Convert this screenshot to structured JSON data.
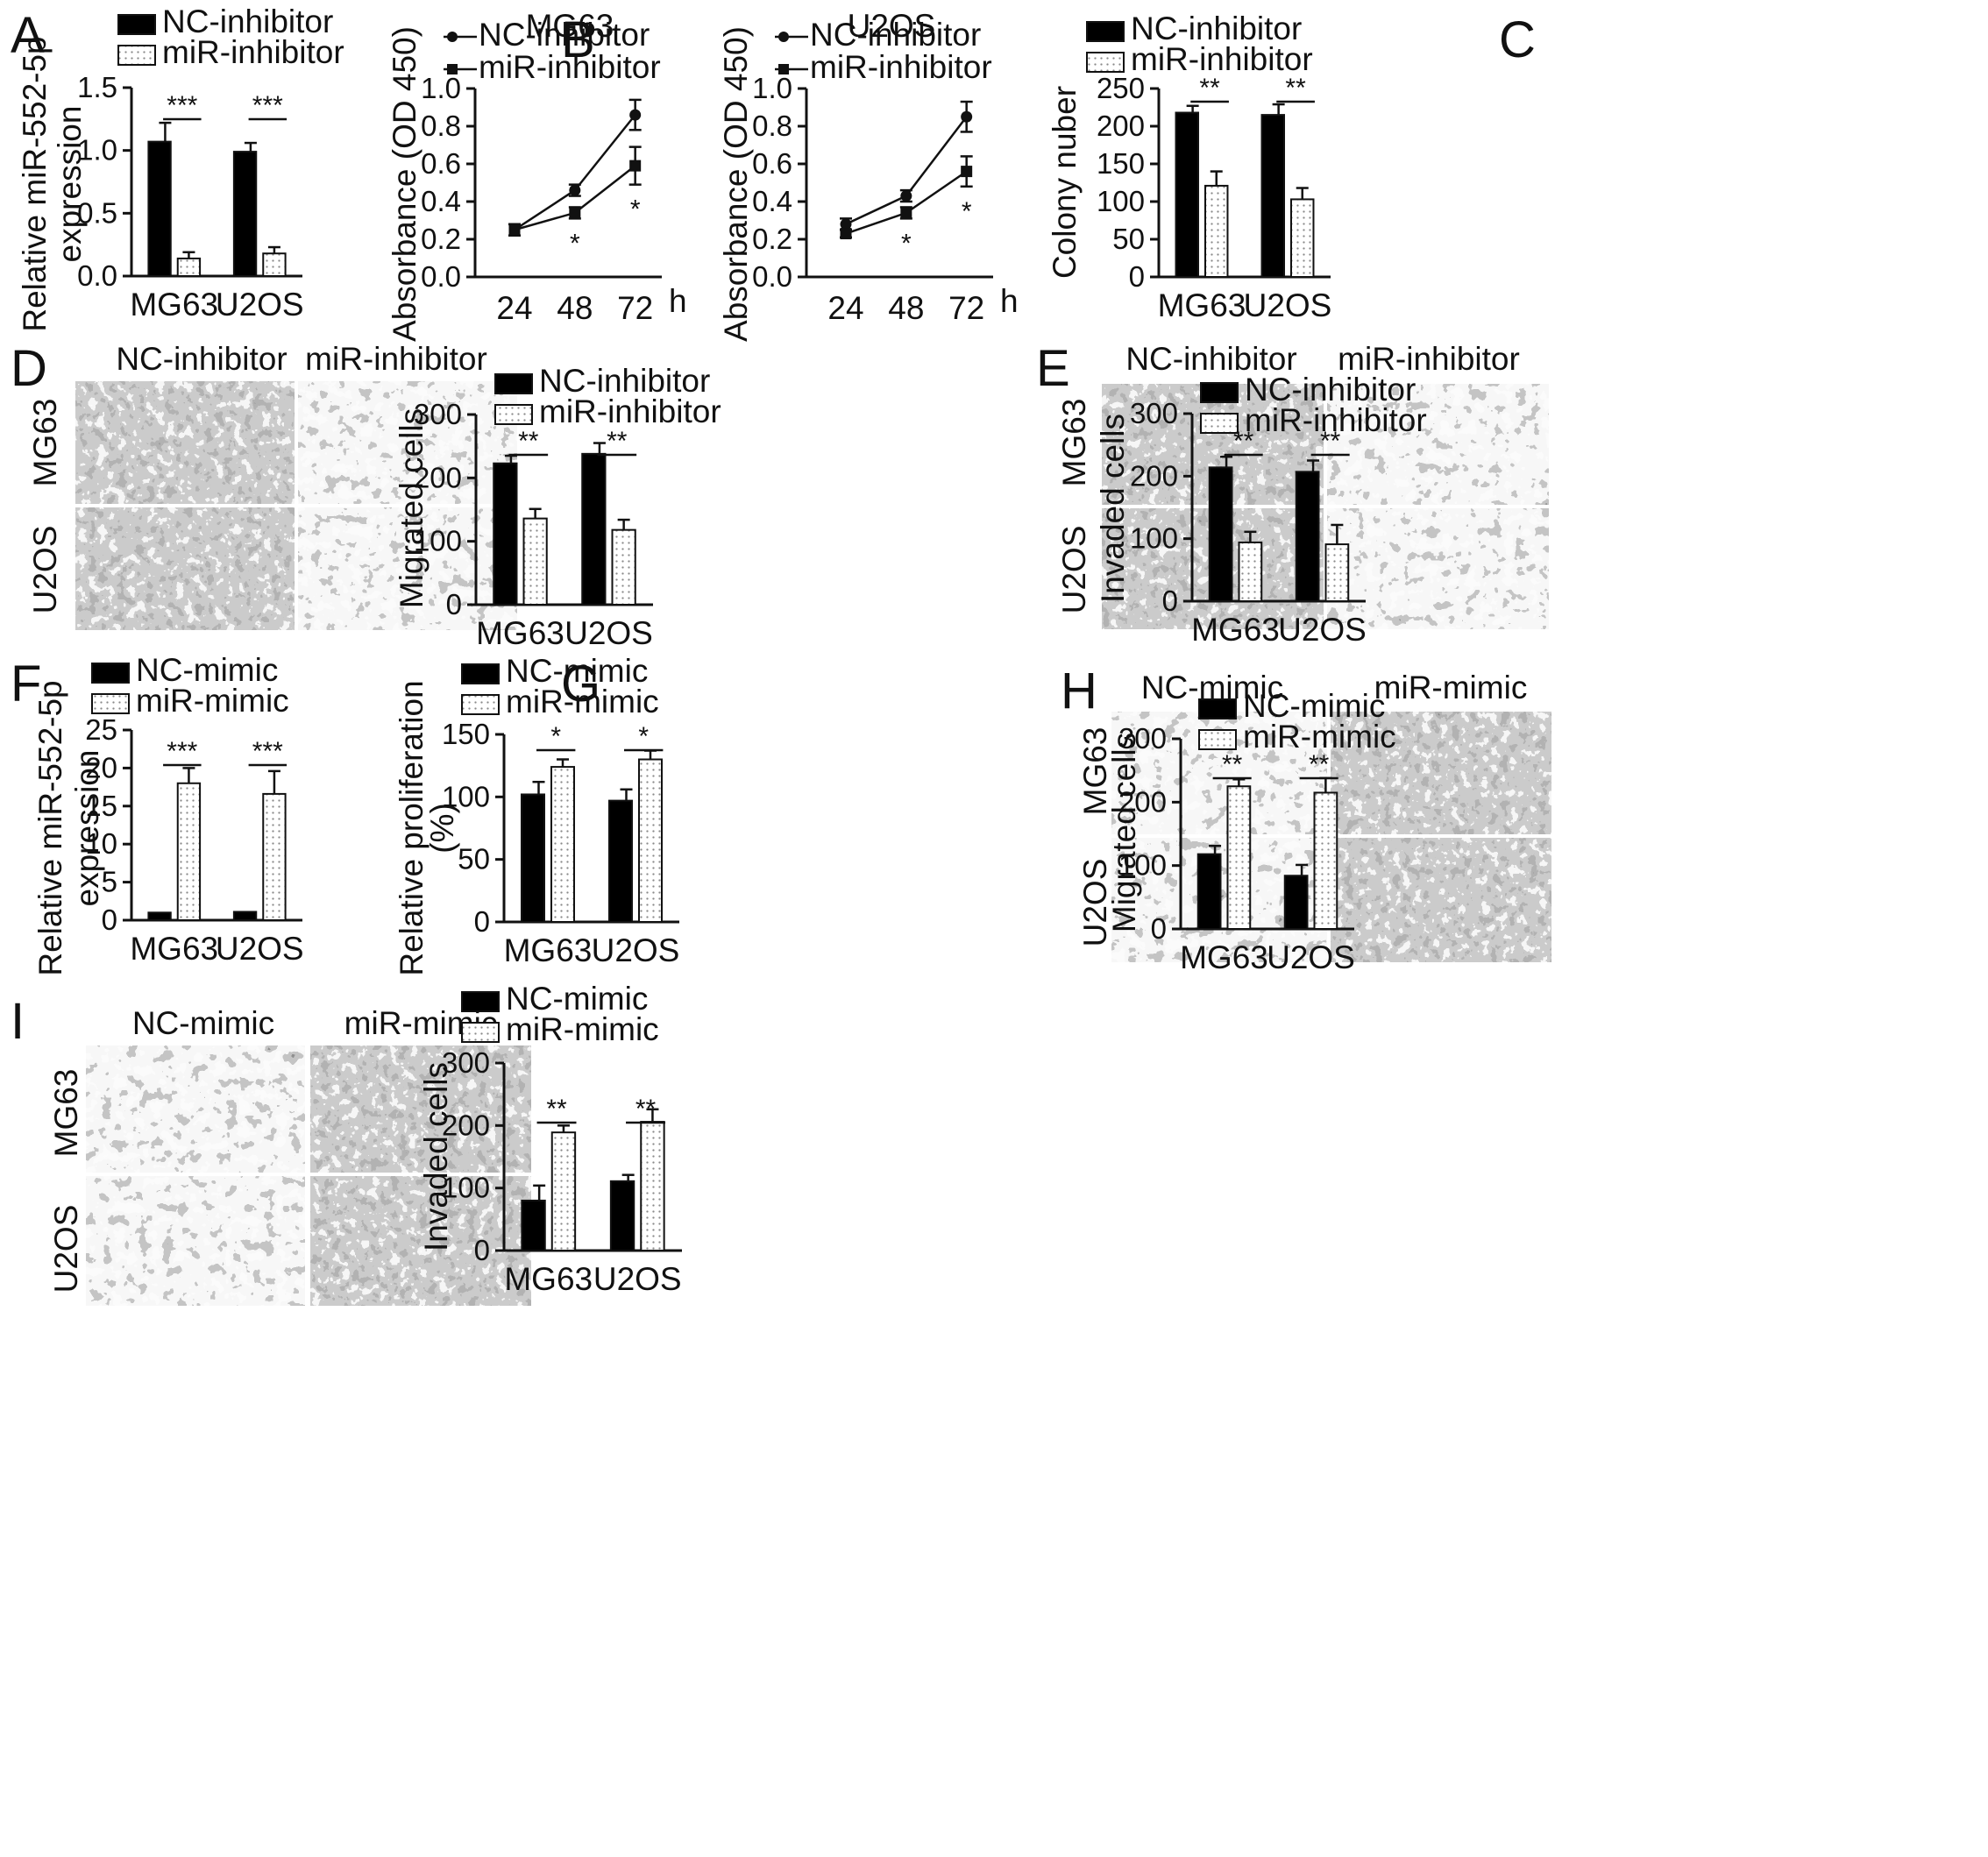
{
  "colors": {
    "nc": "#000000",
    "mir_fill": "#ffffff",
    "mir_dots": "#8a8a8a",
    "ink": "#111111"
  },
  "panels": {
    "A": "A",
    "B": "B",
    "C": "C",
    "D": "D",
    "E": "E",
    "F": "F",
    "G": "G",
    "H": "H",
    "I": "I"
  },
  "micro": {
    "D": {
      "col1": "NC-inhibitor",
      "col2": "miR-inhibitor",
      "row1": "MG63",
      "row2": "U2OS"
    },
    "E": {
      "col1": "NC-inhibitor",
      "col2": "miR-inhibitor",
      "row1": "MG63",
      "row2": "U2OS"
    },
    "H": {
      "col1": "NC-mimic",
      "col2": "miR-mimic",
      "row1": "MG63",
      "row2": "U2OS"
    },
    "I": {
      "col1": "NC-mimic",
      "col2": "miR-mimic",
      "row1": "MG63",
      "row2": "U2OS"
    }
  },
  "chart_data": [
    {
      "id": "A",
      "type": "bar",
      "categories": [
        "MG63",
        "U2OS"
      ],
      "series": [
        {
          "name": "NC-inhibitor",
          "values": [
            1.07,
            0.99
          ],
          "errors": [
            0.15,
            0.07
          ]
        },
        {
          "name": "miR-inhibitor",
          "values": [
            0.14,
            0.18
          ],
          "errors": [
            0.05,
            0.05
          ]
        }
      ],
      "ylabel": "Relative miR-552-5p expression",
      "ylim": [
        0,
        1.5
      ],
      "yticks": [
        "0.0",
        "0.5",
        "1.0",
        "1.5"
      ],
      "significance": [
        "***",
        "***"
      ]
    },
    {
      "id": "B1",
      "type": "line",
      "title": "MG63",
      "x": [
        "24",
        "48",
        "72"
      ],
      "xunit": "h",
      "series": [
        {
          "name": "NC-inhibitor",
          "values": [
            0.25,
            0.46,
            0.86
          ],
          "errors": [
            0.03,
            0.03,
            0.08
          ]
        },
        {
          "name": "miR-inhibitor",
          "values": [
            0.25,
            0.34,
            0.59
          ],
          "errors": [
            0.03,
            0.03,
            0.1
          ]
        }
      ],
      "ylabel": "Absorbance (OD 450)",
      "ylim": [
        0,
        1.0
      ],
      "yticks": [
        "0.0",
        "0.2",
        "0.4",
        "0.6",
        "0.8",
        "1.0"
      ],
      "significance": [
        "",
        "*",
        "*"
      ]
    },
    {
      "id": "B2",
      "type": "line",
      "title": "U2OS",
      "x": [
        "24",
        "48",
        "72"
      ],
      "xunit": "h",
      "series": [
        {
          "name": "NC-inhibitor",
          "values": [
            0.28,
            0.43,
            0.85
          ],
          "errors": [
            0.03,
            0.03,
            0.08
          ]
        },
        {
          "name": "miR-inhibitor",
          "values": [
            0.23,
            0.34,
            0.56
          ],
          "errors": [
            0.02,
            0.03,
            0.08
          ]
        }
      ],
      "ylabel": "Absorbance (OD 450)",
      "ylim": [
        0,
        1.0
      ],
      "yticks": [
        "0.0",
        "0.2",
        "0.4",
        "0.6",
        "0.8",
        "1.0"
      ],
      "significance": [
        "",
        "*",
        "*"
      ]
    },
    {
      "id": "C",
      "type": "bar",
      "categories": [
        "MG63",
        "U2OS"
      ],
      "series": [
        {
          "name": "NC-inhibitor",
          "values": [
            218,
            215
          ],
          "errors": [
            9,
            14
          ]
        },
        {
          "name": "miR-inhibitor",
          "values": [
            121,
            103
          ],
          "errors": [
            19,
            15
          ]
        }
      ],
      "ylabel": "Colony nuber",
      "ylim": [
        0,
        250
      ],
      "yticks": [
        "0",
        "50",
        "100",
        "150",
        "200",
        "250"
      ],
      "significance": [
        "**",
        "**"
      ]
    },
    {
      "id": "D",
      "type": "bar",
      "categories": [
        "MG63",
        "U2OS"
      ],
      "series": [
        {
          "name": "NC-inhibitor",
          "values": [
            223,
            238
          ],
          "errors": [
            12,
            17
          ]
        },
        {
          "name": "miR-inhibitor",
          "values": [
            136,
            118
          ],
          "errors": [
            15,
            16
          ]
        }
      ],
      "ylabel": "Migrated cells",
      "ylim": [
        0,
        300
      ],
      "yticks": [
        "0",
        "100",
        "200",
        "300"
      ],
      "significance": [
        "**",
        "**"
      ]
    },
    {
      "id": "E",
      "type": "bar",
      "categories": [
        "MG63",
        "U2OS"
      ],
      "series": [
        {
          "name": "NC-inhibitor",
          "values": [
            214,
            207
          ],
          "errors": [
            17,
            18
          ]
        },
        {
          "name": "miR-inhibitor",
          "values": [
            94,
            91
          ],
          "errors": [
            17,
            31
          ]
        }
      ],
      "ylabel": "Invaded cells",
      "ylim": [
        0,
        300
      ],
      "yticks": [
        "0",
        "100",
        "200",
        "300"
      ],
      "significance": [
        "**",
        "**"
      ]
    },
    {
      "id": "F",
      "type": "bar",
      "categories": [
        "MG63",
        "U2OS"
      ],
      "series": [
        {
          "name": "NC-mimic",
          "values": [
            1.0,
            1.1
          ],
          "errors": [
            0,
            0
          ]
        },
        {
          "name": "miR-mimic",
          "values": [
            18,
            16.6
          ],
          "errors": [
            2.0,
            3.0
          ]
        }
      ],
      "ylabel": "Relative miR-552-5p expression",
      "ylim": [
        0,
        25
      ],
      "yticks": [
        "0",
        "5",
        "10",
        "15",
        "20",
        "25"
      ],
      "significance": [
        "***",
        "***"
      ]
    },
    {
      "id": "G",
      "type": "bar",
      "categories": [
        "MG63",
        "U2OS"
      ],
      "series": [
        {
          "name": "NC-mimic",
          "values": [
            102,
            97
          ],
          "errors": [
            10,
            9
          ]
        },
        {
          "name": "miR-mimic",
          "values": [
            124,
            130
          ],
          "errors": [
            6,
            7
          ]
        }
      ],
      "ylabel": "Relative proliferation (%)",
      "ylim": [
        0,
        150
      ],
      "yticks": [
        "0",
        "50",
        "100",
        "150"
      ],
      "significance": [
        "*",
        "*"
      ]
    },
    {
      "id": "H",
      "type": "bar",
      "categories": [
        "MG63",
        "U2OS"
      ],
      "series": [
        {
          "name": "NC-mimic",
          "values": [
            118,
            84
          ],
          "errors": [
            13,
            17
          ]
        },
        {
          "name": "miR-mimic",
          "values": [
            225,
            215
          ],
          "errors": [
            11,
            23
          ]
        }
      ],
      "ylabel": "Migrated cells",
      "ylim": [
        0,
        300
      ],
      "yticks": [
        "0",
        "100",
        "200",
        "300"
      ],
      "significance": [
        "**",
        "**"
      ]
    },
    {
      "id": "I",
      "type": "bar",
      "categories": [
        "MG63",
        "U2OS"
      ],
      "series": [
        {
          "name": "NC-mimic",
          "values": [
            80,
            111
          ],
          "errors": [
            24,
            10
          ]
        },
        {
          "name": "miR-mimic",
          "values": [
            189,
            206
          ],
          "errors": [
            11,
            20
          ]
        }
      ],
      "ylabel": "Invaded cells",
      "ylim": [
        0,
        300
      ],
      "yticks": [
        "0",
        "100",
        "200",
        "300"
      ],
      "significance": [
        "**",
        "**"
      ]
    }
  ]
}
